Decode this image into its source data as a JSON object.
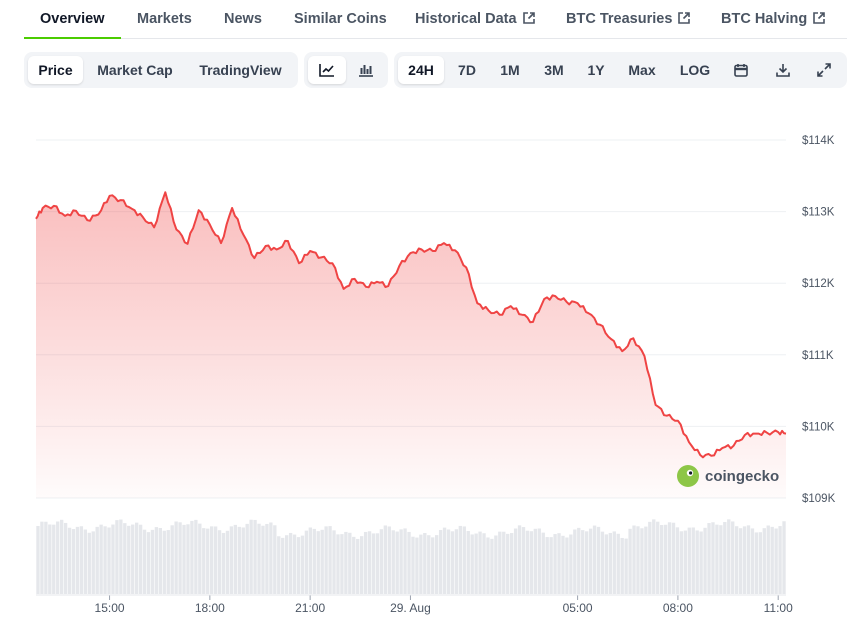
{
  "tabs": [
    {
      "label": "Overview",
      "external": false,
      "active": true
    },
    {
      "label": "Markets",
      "external": false,
      "active": false
    },
    {
      "label": "News",
      "external": false,
      "active": false
    },
    {
      "label": "Similar Coins",
      "external": false,
      "active": false
    },
    {
      "label": "Historical Data",
      "external": true,
      "active": false
    },
    {
      "label": "BTC Treasuries",
      "external": true,
      "active": false
    },
    {
      "label": "BTC Halving",
      "external": true,
      "active": false
    }
  ],
  "toolbar": {
    "views": [
      "Price",
      "Market Cap",
      "TradingView"
    ],
    "selected_view": "Price",
    "chart_modes": [
      "line-chart-icon",
      "ohlc-chart-icon"
    ],
    "selected_mode": "line-chart-icon",
    "ranges": [
      "24H",
      "7D",
      "1M",
      "3M",
      "1Y",
      "Max",
      "LOG"
    ],
    "selected_range": "24H",
    "actions": [
      "calendar-icon",
      "download-icon",
      "fullscreen-icon"
    ]
  },
  "watermark": "coingecko",
  "colors": {
    "line": "#ef4444",
    "accent": "#4bcc00",
    "volume": "#e5e7eb"
  },
  "chart_data": {
    "type": "area",
    "title": "",
    "xlabel": "",
    "ylabel": "",
    "xlim": [
      "28 Aug 12:48",
      "29 Aug 11:14"
    ],
    "ylim": [
      108900,
      114300
    ],
    "y_ticks": [
      109000,
      110000,
      111000,
      112000,
      113000,
      114000
    ],
    "y_tick_labels": [
      "$109K",
      "$110K",
      "$111K",
      "$112K",
      "$113K",
      "$114K"
    ],
    "x_ticks": [
      "28 Aug 15:00",
      "28 Aug 18:00",
      "28 Aug 21:00",
      "29 Aug 00:00",
      "29 Aug 05:00",
      "29 Aug 08:00",
      "29 Aug 11:00"
    ],
    "x_tick_labels": [
      "15:00",
      "18:00",
      "21:00",
      "29. Aug",
      "05:00",
      "08:00",
      "11:00"
    ],
    "grid": true,
    "legend": "none",
    "series": [
      {
        "name": "",
        "x": [
          "28 Aug 12:48",
          "28 Aug 13:00",
          "28 Aug 13:20",
          "28 Aug 13:40",
          "28 Aug 14:00",
          "28 Aug 14:20",
          "28 Aug 14:40",
          "28 Aug 15:00",
          "28 Aug 15:20",
          "28 Aug 15:40",
          "28 Aug 16:00",
          "28 Aug 16:20",
          "28 Aug 16:40",
          "28 Aug 17:00",
          "28 Aug 17:20",
          "28 Aug 17:40",
          "28 Aug 18:00",
          "28 Aug 18:20",
          "28 Aug 18:40",
          "28 Aug 19:00",
          "28 Aug 19:20",
          "28 Aug 19:40",
          "28 Aug 20:00",
          "28 Aug 20:20",
          "28 Aug 20:40",
          "28 Aug 21:00",
          "28 Aug 21:20",
          "28 Aug 21:40",
          "28 Aug 22:00",
          "28 Aug 22:20",
          "28 Aug 22:40",
          "28 Aug 23:00",
          "28 Aug 23:20",
          "28 Aug 23:40",
          "29 Aug 00:00",
          "29 Aug 00:20",
          "29 Aug 00:40",
          "29 Aug 01:00",
          "29 Aug 01:20",
          "29 Aug 01:40",
          "29 Aug 02:00",
          "29 Aug 02:20",
          "29 Aug 02:40",
          "29 Aug 03:00",
          "29 Aug 03:20",
          "29 Aug 03:40",
          "29 Aug 04:00",
          "29 Aug 04:20",
          "29 Aug 04:40",
          "29 Aug 05:00",
          "29 Aug 05:20",
          "29 Aug 05:40",
          "29 Aug 06:00",
          "29 Aug 06:20",
          "29 Aug 06:40",
          "29 Aug 07:00",
          "29 Aug 07:20",
          "29 Aug 07:40",
          "29 Aug 08:00",
          "29 Aug 08:20",
          "29 Aug 08:40",
          "29 Aug 09:00",
          "29 Aug 09:20",
          "29 Aug 09:40",
          "29 Aug 10:00",
          "29 Aug 10:20",
          "29 Aug 10:40",
          "29 Aug 11:00",
          "29 Aug 11:14"
        ],
        "values": [
          112900,
          113050,
          113080,
          112940,
          113010,
          112880,
          112960,
          113220,
          113160,
          113040,
          112920,
          112780,
          113270,
          112750,
          112550,
          113020,
          112820,
          112560,
          113050,
          112680,
          112350,
          112520,
          112470,
          112590,
          112280,
          112450,
          112360,
          112280,
          111920,
          112060,
          111950,
          112020,
          111960,
          112240,
          112420,
          112470,
          112450,
          112560,
          112460,
          112220,
          111720,
          111620,
          111560,
          111680,
          111560,
          111460,
          111780,
          111820,
          111740,
          111720,
          111580,
          111420,
          111220,
          111050,
          111230,
          110980,
          110300,
          110150,
          110080,
          109780,
          109600,
          109590,
          109700,
          109730,
          109880,
          109900,
          109910,
          109920,
          109900
        ]
      }
    ]
  }
}
